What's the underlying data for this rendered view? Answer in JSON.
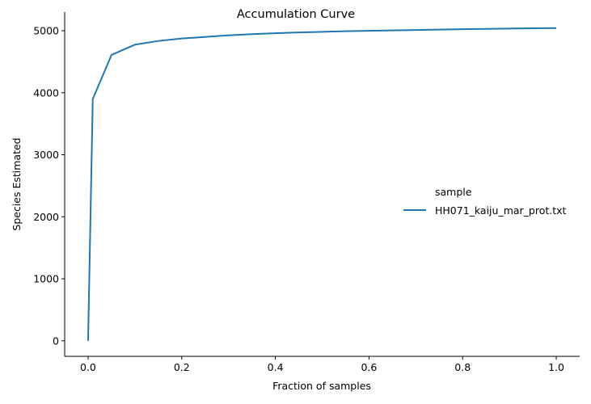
{
  "chart_data": {
    "type": "line",
    "title": "Accumulation Curve",
    "xlabel": "Fraction of samples",
    "ylabel": "Species Estimated",
    "xlim": [
      -0.05,
      1.05
    ],
    "ylim": [
      -250,
      5300
    ],
    "x_ticks": [
      0.0,
      0.2,
      0.4,
      0.6,
      0.8,
      1.0
    ],
    "x_tick_labels": [
      "0.0",
      "0.2",
      "0.4",
      "0.6",
      "0.8",
      "1.0"
    ],
    "y_ticks": [
      0,
      1000,
      2000,
      3000,
      4000,
      5000
    ],
    "y_tick_labels": [
      "0",
      "1000",
      "2000",
      "3000",
      "4000",
      "5000"
    ],
    "grid": false,
    "legend": {
      "title": "sample",
      "placement": "center-right"
    },
    "series": [
      {
        "name": "HH071_kaiju_mar_prot.txt",
        "color": "#1f77b4",
        "x": [
          0.0,
          0.01,
          0.05,
          0.1,
          0.15,
          0.2,
          0.25,
          0.3,
          0.35,
          0.4,
          0.45,
          0.5,
          0.55,
          0.6,
          0.65,
          0.7,
          0.75,
          0.8,
          0.85,
          0.9,
          0.95,
          1.0
        ],
        "y": [
          0,
          3900,
          4610,
          4775,
          4835,
          4875,
          4900,
          4925,
          4945,
          4960,
          4972,
          4982,
          4992,
          4998,
          5005,
          5012,
          5018,
          5025,
          5030,
          5035,
          5040,
          5043
        ]
      }
    ]
  }
}
